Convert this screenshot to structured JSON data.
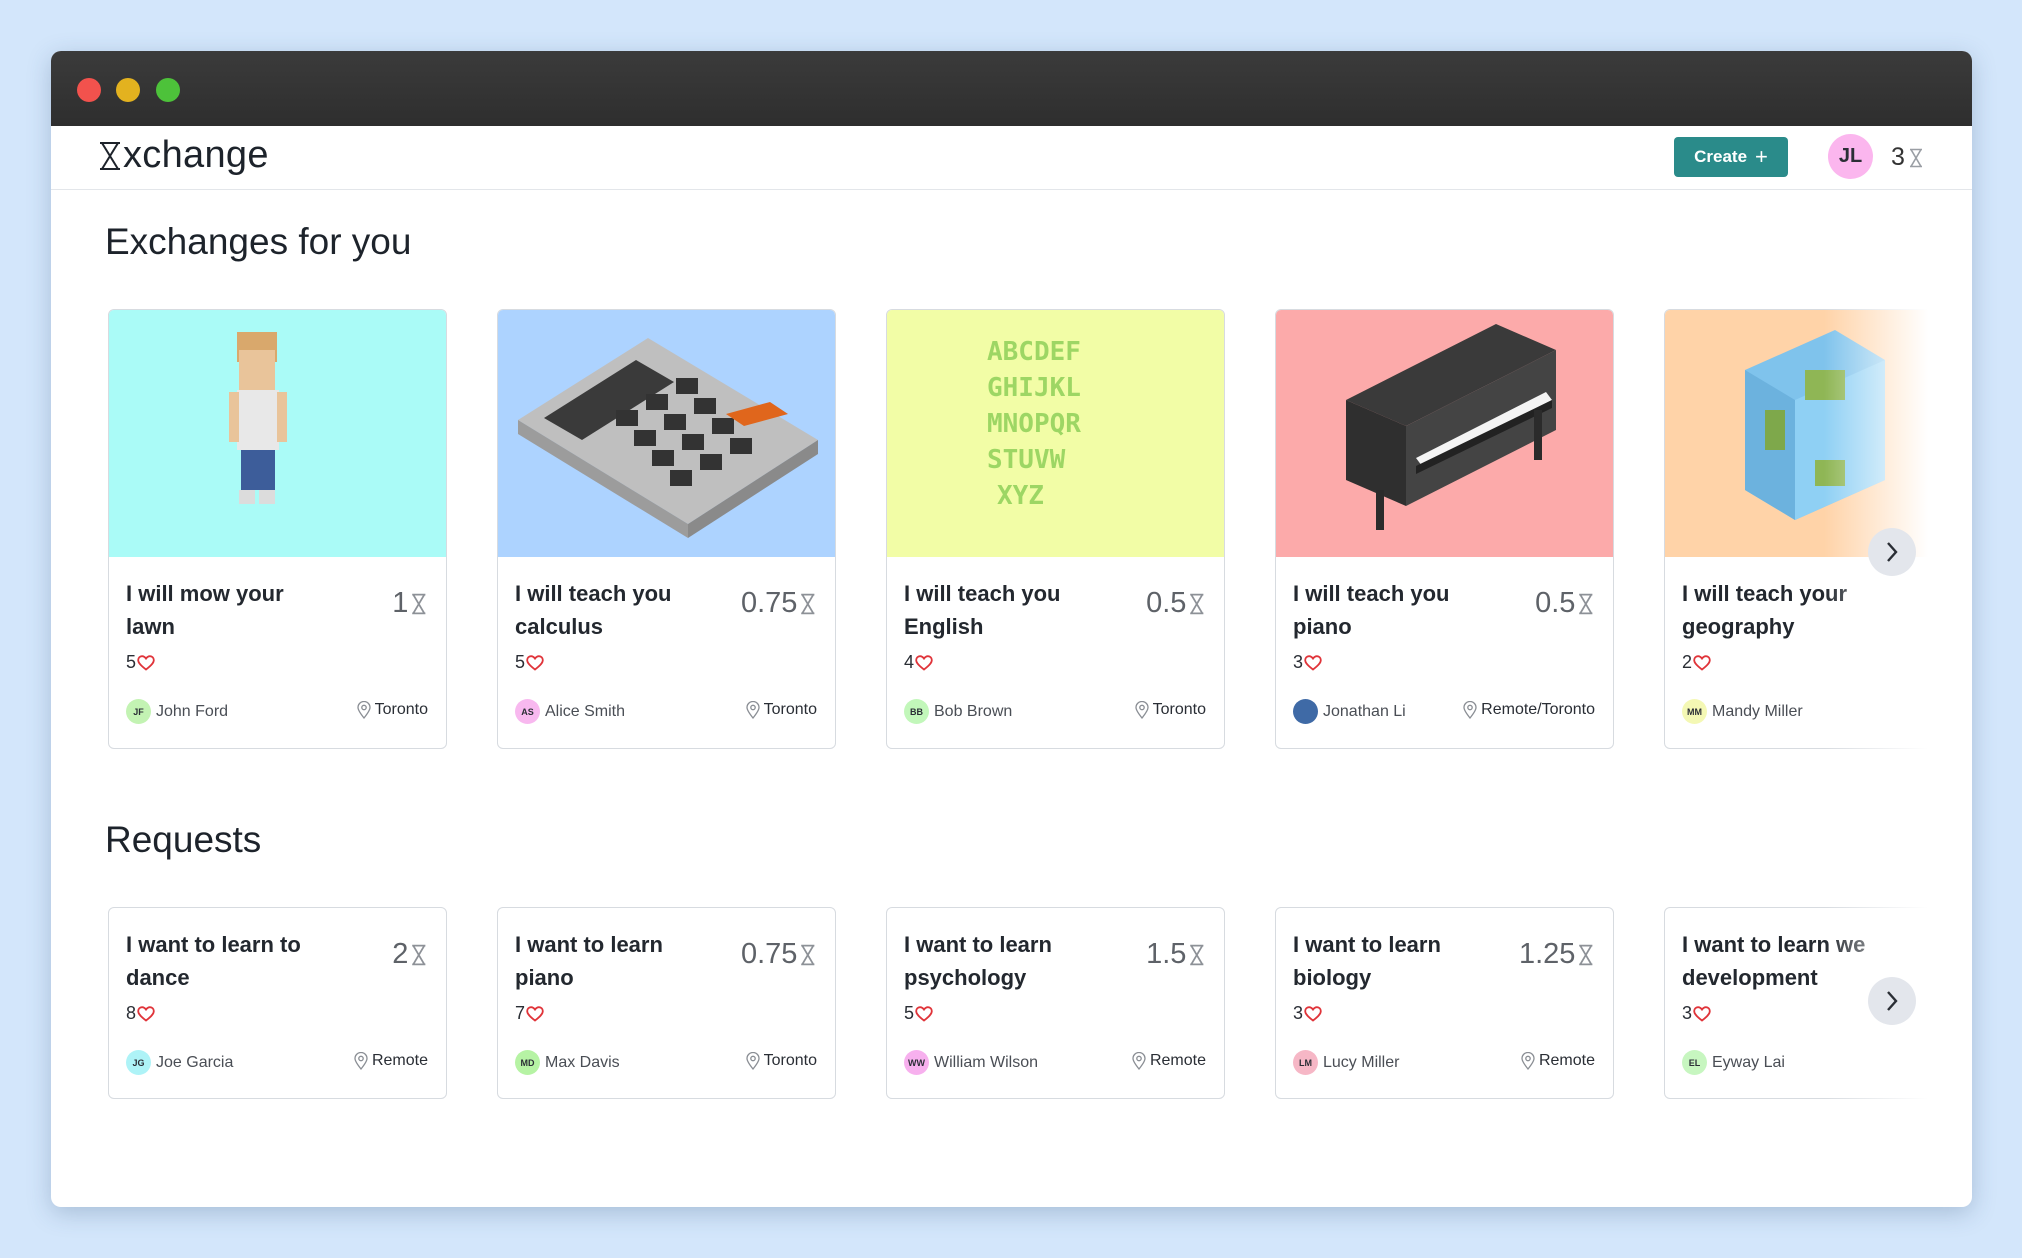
{
  "app": {
    "brand_suffix": "xchange",
    "create_label": "Create",
    "create_plus": "+",
    "user_initials": "JL",
    "balance": "3"
  },
  "colors": {
    "accent": "#2a8b8a",
    "heart": "#e0343a",
    "avatar_me": "#fbb6ee"
  },
  "sections": {
    "exchanges_title": "Exchanges for you",
    "requests_title": "Requests"
  },
  "exchanges": [
    {
      "title": "I will mow your lawn",
      "price": "1",
      "likes": "5",
      "initials": "JF",
      "user": "John Ford",
      "location": "Toronto",
      "bg": "#aafbf7",
      "avatar": "#c3f3b3",
      "art": "person"
    },
    {
      "title": "I will teach you calculus",
      "price": "0.75",
      "likes": "5",
      "initials": "AS",
      "user": "Alice Smith",
      "location": "Toronto",
      "bg": "#add3ff",
      "avatar": "#f8b8ef",
      "art": "calculator"
    },
    {
      "title": "I will teach you English",
      "price": "0.5",
      "likes": "4",
      "initials": "BB",
      "user": "Bob Brown",
      "location": "Toronto",
      "bg": "#f2fda6",
      "avatar": "#c2f7ba",
      "art": "letters"
    },
    {
      "title": "I will teach you piano",
      "price": "0.5",
      "likes": "3",
      "initials": "",
      "user": "Jonathan Li",
      "location": "Remote/Toronto",
      "bg": "#fcaaaa",
      "avatar": "#3f6aa6",
      "art": "piano"
    },
    {
      "title": "I will teach your geography",
      "price": "",
      "likes": "2",
      "initials": "MM",
      "user": "Mandy Miller",
      "location": "",
      "bg": "#ffd3a8",
      "avatar": "#f4f8b4",
      "art": "globe"
    }
  ],
  "requests": [
    {
      "title": "I want to learn to dance",
      "price": "2",
      "likes": "8",
      "initials": "JG",
      "user": "Joe Garcia",
      "location": "Remote",
      "avatar": "#aef3f7"
    },
    {
      "title": "I want to learn piano",
      "price": "0.75",
      "likes": "7",
      "initials": "MD",
      "user": "Max Davis",
      "location": "Toronto",
      "avatar": "#b6f3a4"
    },
    {
      "title": "I want to learn psychology",
      "price": "1.5",
      "likes": "5",
      "initials": "WW",
      "user": "William Wilson",
      "location": "Remote",
      "avatar": "#f7b0ee"
    },
    {
      "title": "I want to learn biology",
      "price": "1.25",
      "likes": "3",
      "initials": "LM",
      "user": "Lucy Miller",
      "location": "Remote",
      "avatar": "#f6b7c6"
    },
    {
      "title": "I want to learn we",
      "title_line2": "development",
      "price": "",
      "likes": "3",
      "initials": "EL",
      "user": "Eyway Lai",
      "location": "",
      "avatar": "#c7f6c0"
    }
  ],
  "icons": {
    "logo": "hourglass-icon",
    "heart": "heart-icon",
    "location": "location-pin-icon",
    "next": "chevron-right-icon"
  }
}
